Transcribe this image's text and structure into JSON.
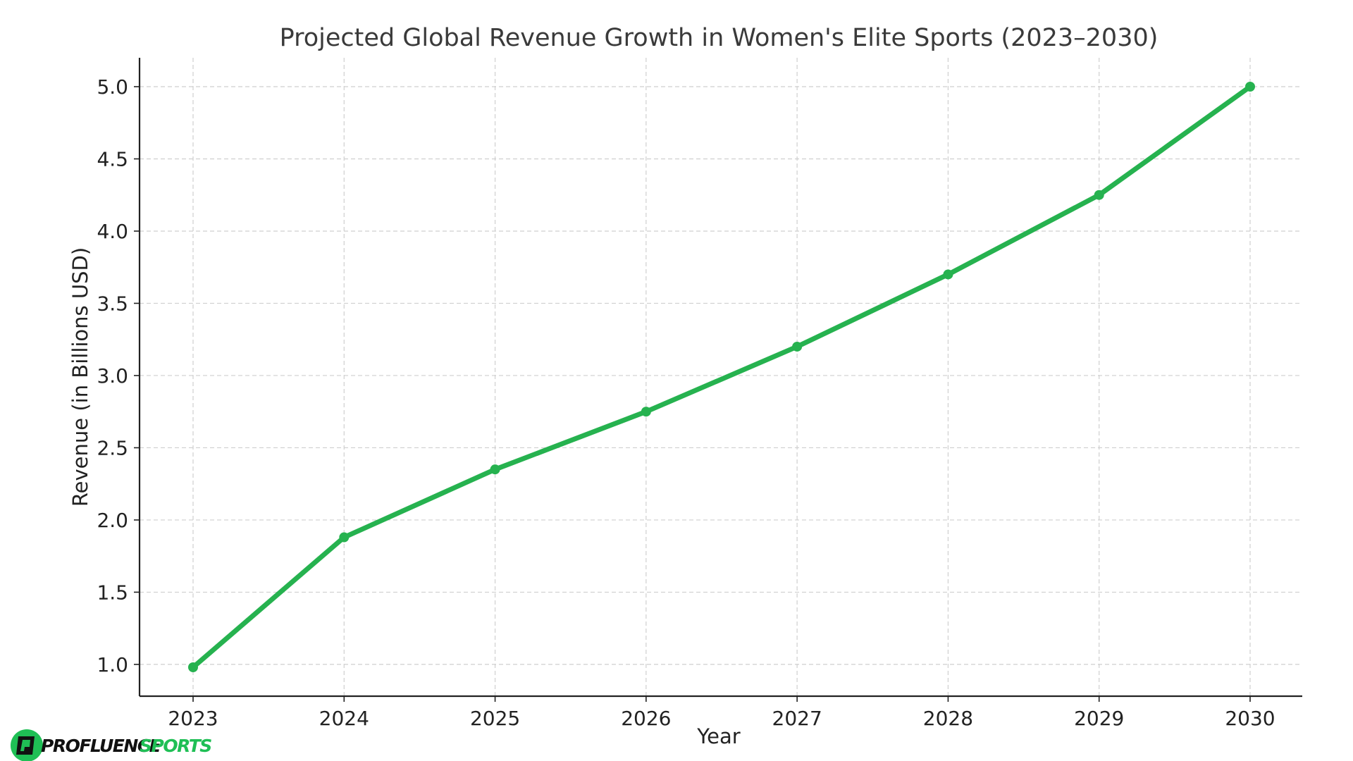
{
  "chart_data": {
    "type": "line",
    "title": "Projected Global Revenue Growth in Women's Elite Sports (2023–2030)",
    "xlabel": "Year",
    "ylabel": "Revenue (in Billions USD)",
    "x": [
      "2023",
      "2024",
      "2025",
      "2026",
      "2027",
      "2028",
      "2029",
      "2030"
    ],
    "series": [
      {
        "name": "Revenue",
        "values": [
          0.98,
          1.88,
          2.35,
          2.75,
          3.2,
          3.7,
          4.25,
          5.0
        ],
        "color": "#26b24f"
      }
    ],
    "ylim": [
      0.78,
      5.2
    ],
    "yticks": [
      "1.0",
      "1.5",
      "2.0",
      "2.5",
      "3.0",
      "3.5",
      "4.0",
      "4.5",
      "5.0"
    ],
    "ytick_values": [
      1.0,
      1.5,
      2.0,
      2.5,
      3.0,
      3.5,
      4.0,
      4.5,
      5.0
    ],
    "grid": true,
    "colors": {
      "line": "#26b24f",
      "grid": "#cfcfcf",
      "axis": "#222222"
    }
  },
  "logo": {
    "text_primary": "PROFLUENCE",
    "text_secondary": "SPORTS",
    "icon": "profluence-logo-icon",
    "colors": {
      "primary": "#111111",
      "accent": "#1fbf55"
    }
  }
}
